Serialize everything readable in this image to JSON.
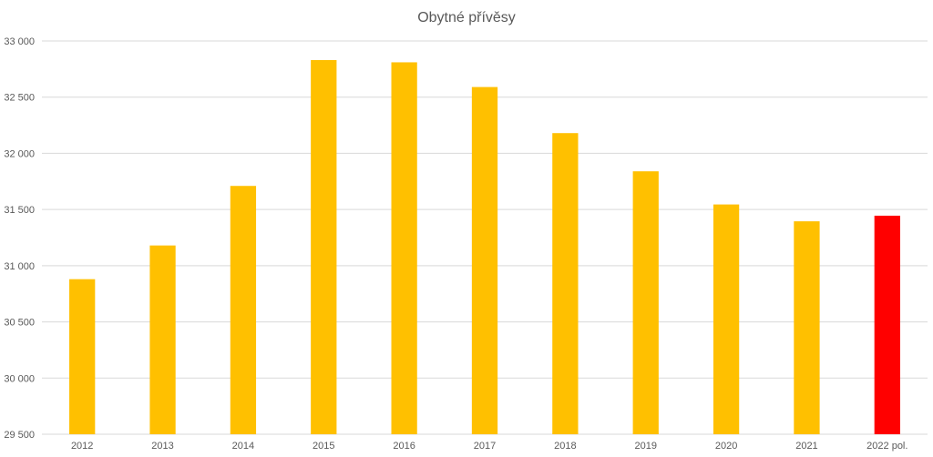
{
  "chart_data": {
    "type": "bar",
    "title": "Obytné přívěsy",
    "xlabel": "",
    "ylabel": "",
    "categories": [
      "2012",
      "2013",
      "2014",
      "2015",
      "2016",
      "2017",
      "2018",
      "2019",
      "2020",
      "2021",
      "2022 pol."
    ],
    "values": [
      30880,
      31180,
      31710,
      32830,
      32810,
      32590,
      32180,
      31840,
      31545,
      31395,
      31445
    ],
    "ylim": [
      29500,
      33000
    ],
    "yticks": [
      {
        "value": 29500,
        "label": "29 500"
      },
      {
        "value": 30000,
        "label": "30 000"
      },
      {
        "value": 30500,
        "label": "30 500"
      },
      {
        "value": 31000,
        "label": "31 000"
      },
      {
        "value": 31500,
        "label": "31 500"
      },
      {
        "value": 32000,
        "label": "32 000"
      },
      {
        "value": 32500,
        "label": "32 500"
      },
      {
        "value": 33000,
        "label": "33 000"
      }
    ],
    "grid": true,
    "legend": "none",
    "colors": {
      "bar": "#ffc000",
      "highlight": "#ff0000",
      "grid": "#d9d9d9",
      "text": "#595959"
    },
    "highlight_index": 10
  }
}
